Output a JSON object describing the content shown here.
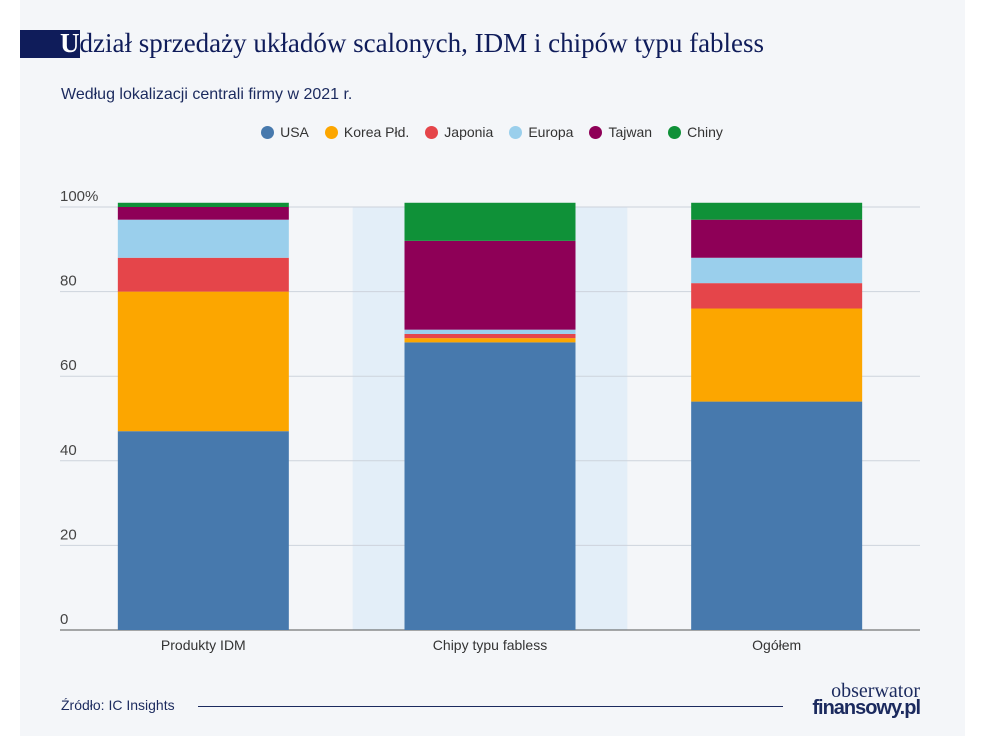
{
  "title": {
    "first_letter": "U",
    "rest": "dział sprzedaży układów scalonych, IDM i chipów typu fabless"
  },
  "subtitle": "Według lokalizacji centrali firmy w 2021 r.",
  "source": "Źródło: IC Insights",
  "logo": {
    "line1": "obserwator",
    "line2": "finansowy.pl"
  },
  "chart_data": {
    "type": "bar",
    "stacked": true,
    "categories": [
      "Produkty IDM",
      "Chipy typu fabless",
      "Ogółem"
    ],
    "highlighted_category": "Chipy typu fabless",
    "series": [
      {
        "name": "USA",
        "color": "#4779ad",
        "values": [
          47,
          68,
          54
        ]
      },
      {
        "name": "Korea Płd.",
        "color": "#fca600",
        "values": [
          33,
          1,
          22
        ]
      },
      {
        "name": "Japonia",
        "color": "#e5454a",
        "values": [
          8,
          1,
          6
        ]
      },
      {
        "name": "Europa",
        "color": "#9acfec",
        "values": [
          9,
          1,
          6
        ]
      },
      {
        "name": "Tajwan",
        "color": "#8e0057",
        "values": [
          3,
          21,
          9
        ]
      },
      {
        "name": "Chiny",
        "color": "#0f9138",
        "values": [
          1,
          9,
          4
        ]
      }
    ],
    "yticks": [
      "0",
      "20",
      "40",
      "60",
      "80",
      "100%"
    ],
    "ylim": [
      0,
      100
    ],
    "grid": true,
    "legend": "top-center"
  }
}
